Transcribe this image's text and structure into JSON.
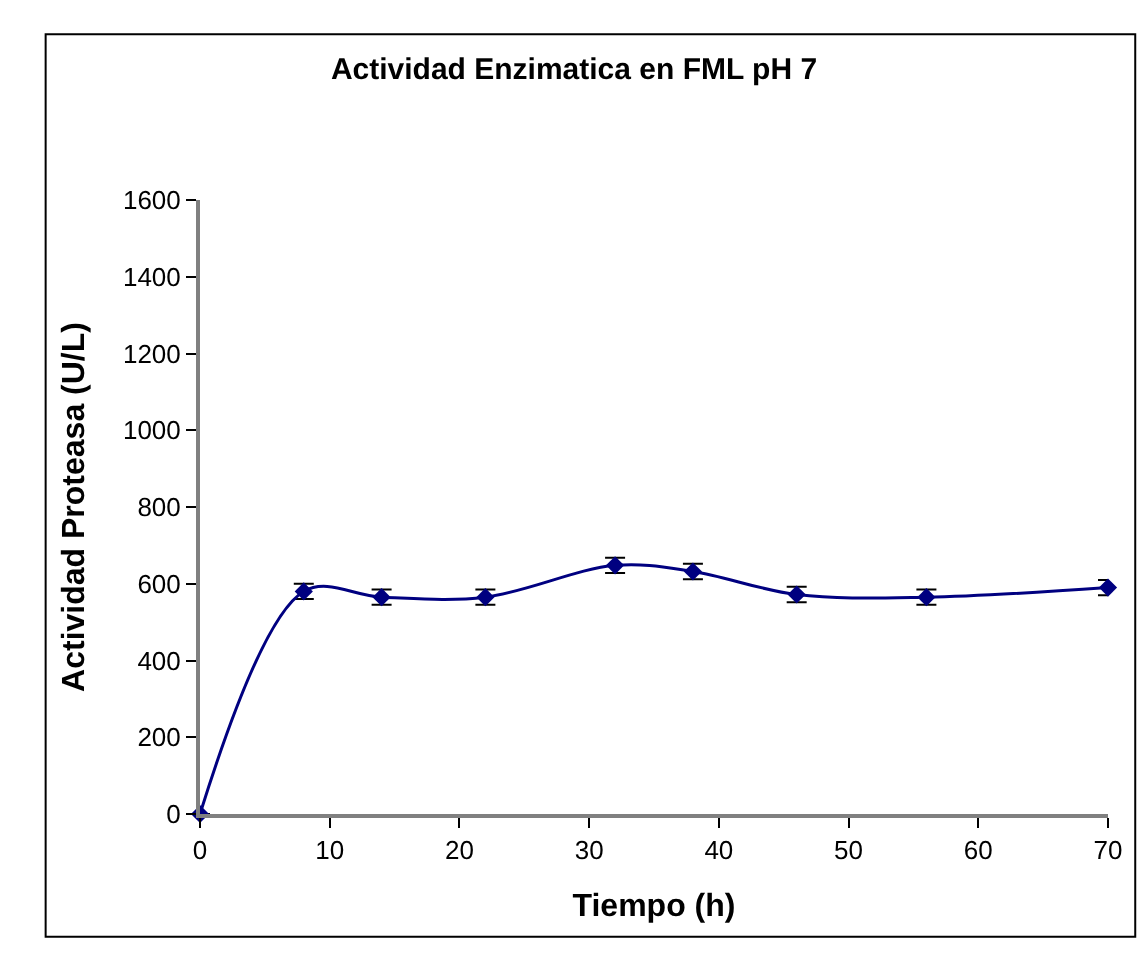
{
  "chart_data": {
    "type": "line",
    "title": "Actividad Enzimatica en FML pH 7",
    "xlabel": "Tiempo (h)",
    "ylabel": "Actividad Proteasa (U/L)",
    "x": [
      0,
      8,
      14,
      22,
      32,
      38,
      46,
      56,
      70
    ],
    "series": [
      {
        "color": "#000080",
        "values": [
          0,
          580,
          565,
          565,
          648,
          632,
          572,
          565,
          590
        ],
        "errors": [
          null,
          20,
          20,
          20,
          20,
          20,
          20,
          20,
          20
        ]
      }
    ],
    "xlim": [
      0,
      70
    ],
    "xticks": [
      0,
      10,
      20,
      30,
      40,
      50,
      60,
      70
    ],
    "ylim": [
      0,
      1600
    ],
    "yticks": [
      0,
      200,
      400,
      600,
      800,
      1000,
      1200,
      1400,
      1600
    ],
    "legend": false,
    "marker": "diamond",
    "line_style": "solid"
  }
}
